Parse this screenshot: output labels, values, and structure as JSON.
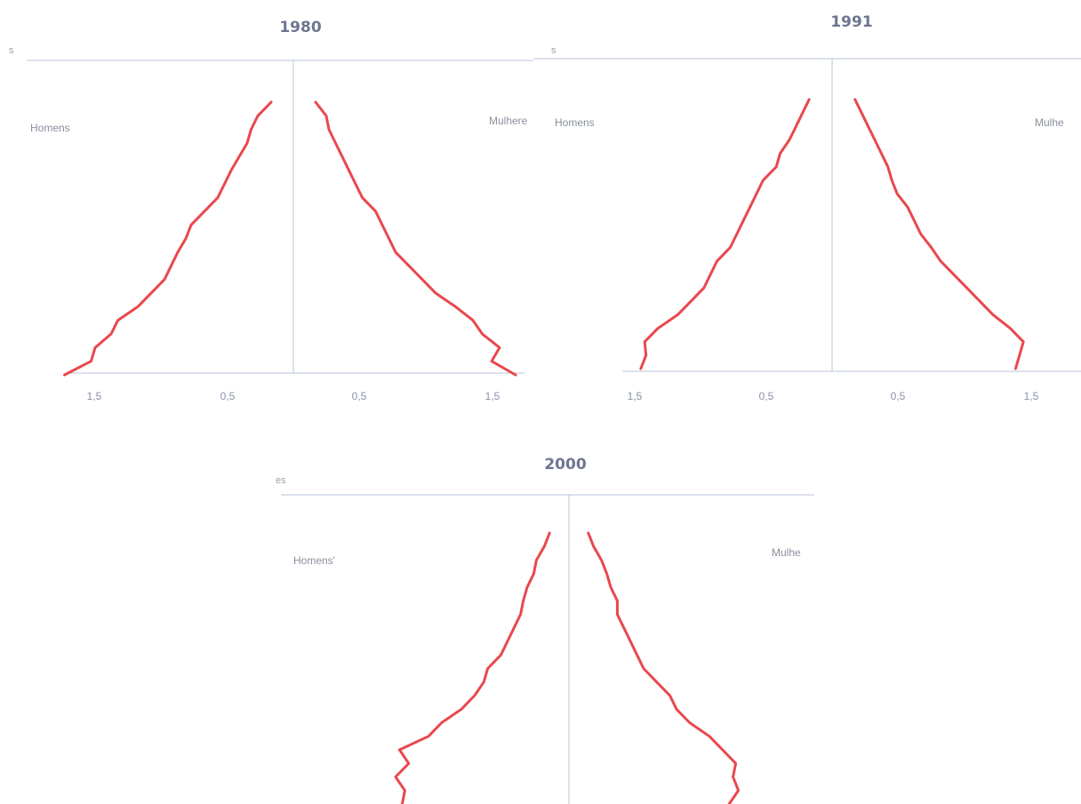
{
  "color_series": "#e8484e",
  "color_axis": "#b9c3dc",
  "chart_data": [
    {
      "type": "line",
      "title": "1980",
      "ylabel_fragment": "s",
      "left_label": "Homens",
      "right_label": "Mulhere",
      "x_tick_labels": [
        "1,5",
        "0,5",
        "0,5",
        "1,5"
      ],
      "y_range_age_groups": [
        0,
        100
      ],
      "series": [
        {
          "side": "men",
          "values": [
            1.65,
            1.45,
            1.42,
            1.3,
            1.25,
            1.1,
            1.0,
            0.9,
            0.85,
            0.8,
            0.74,
            0.7,
            0.6,
            0.5,
            0.45,
            0.4,
            0.34,
            0.28,
            0.25,
            0.2,
            0.1
          ]
        },
        {
          "side": "women",
          "values": [
            1.6,
            1.42,
            1.48,
            1.35,
            1.28,
            1.15,
            1.0,
            0.9,
            0.8,
            0.7,
            0.65,
            0.6,
            0.55,
            0.45,
            0.4,
            0.35,
            0.3,
            0.25,
            0.2,
            0.18,
            0.1
          ]
        }
      ]
    },
    {
      "type": "line",
      "title": "1991",
      "ylabel_fragment": "s",
      "left_label": "Homens",
      "right_label": "Mulhe",
      "x_tick_labels": [
        "1,5",
        "0,5",
        "0,5",
        "1,5"
      ],
      "y_range_age_groups": [
        0,
        100
      ],
      "series": [
        {
          "side": "men",
          "values": [
            1.38,
            1.34,
            1.35,
            1.25,
            1.1,
            1.0,
            0.9,
            0.85,
            0.8,
            0.7,
            0.65,
            0.6,
            0.55,
            0.5,
            0.45,
            0.35,
            0.32,
            0.25,
            0.2,
            0.15,
            0.1
          ]
        },
        {
          "side": "women",
          "values": [
            1.32,
            1.35,
            1.38,
            1.28,
            1.15,
            1.05,
            0.95,
            0.85,
            0.75,
            0.68,
            0.6,
            0.55,
            0.5,
            0.42,
            0.38,
            0.35,
            0.3,
            0.25,
            0.2,
            0.15,
            0.1
          ]
        }
      ]
    },
    {
      "type": "line",
      "title": "2000",
      "ylabel_fragment": "es",
      "left_label": "Homens'",
      "right_label": "Mulhe",
      "x_tick_labels": [],
      "y_range_age_groups": [
        0,
        100
      ],
      "series": [
        {
          "side": "men",
          "values": [
            1.2,
            1.18,
            1.25,
            1.15,
            1.22,
            1.0,
            0.9,
            0.75,
            0.65,
            0.58,
            0.55,
            0.45,
            0.4,
            0.35,
            0.3,
            0.28,
            0.25,
            0.2,
            0.18,
            0.12,
            0.08
          ]
        },
        {
          "side": "women",
          "values": [
            1.15,
            1.22,
            1.18,
            1.2,
            1.1,
            1.0,
            0.85,
            0.75,
            0.7,
            0.6,
            0.5,
            0.45,
            0.4,
            0.35,
            0.3,
            0.3,
            0.25,
            0.22,
            0.18,
            0.12,
            0.08
          ]
        }
      ]
    }
  ]
}
